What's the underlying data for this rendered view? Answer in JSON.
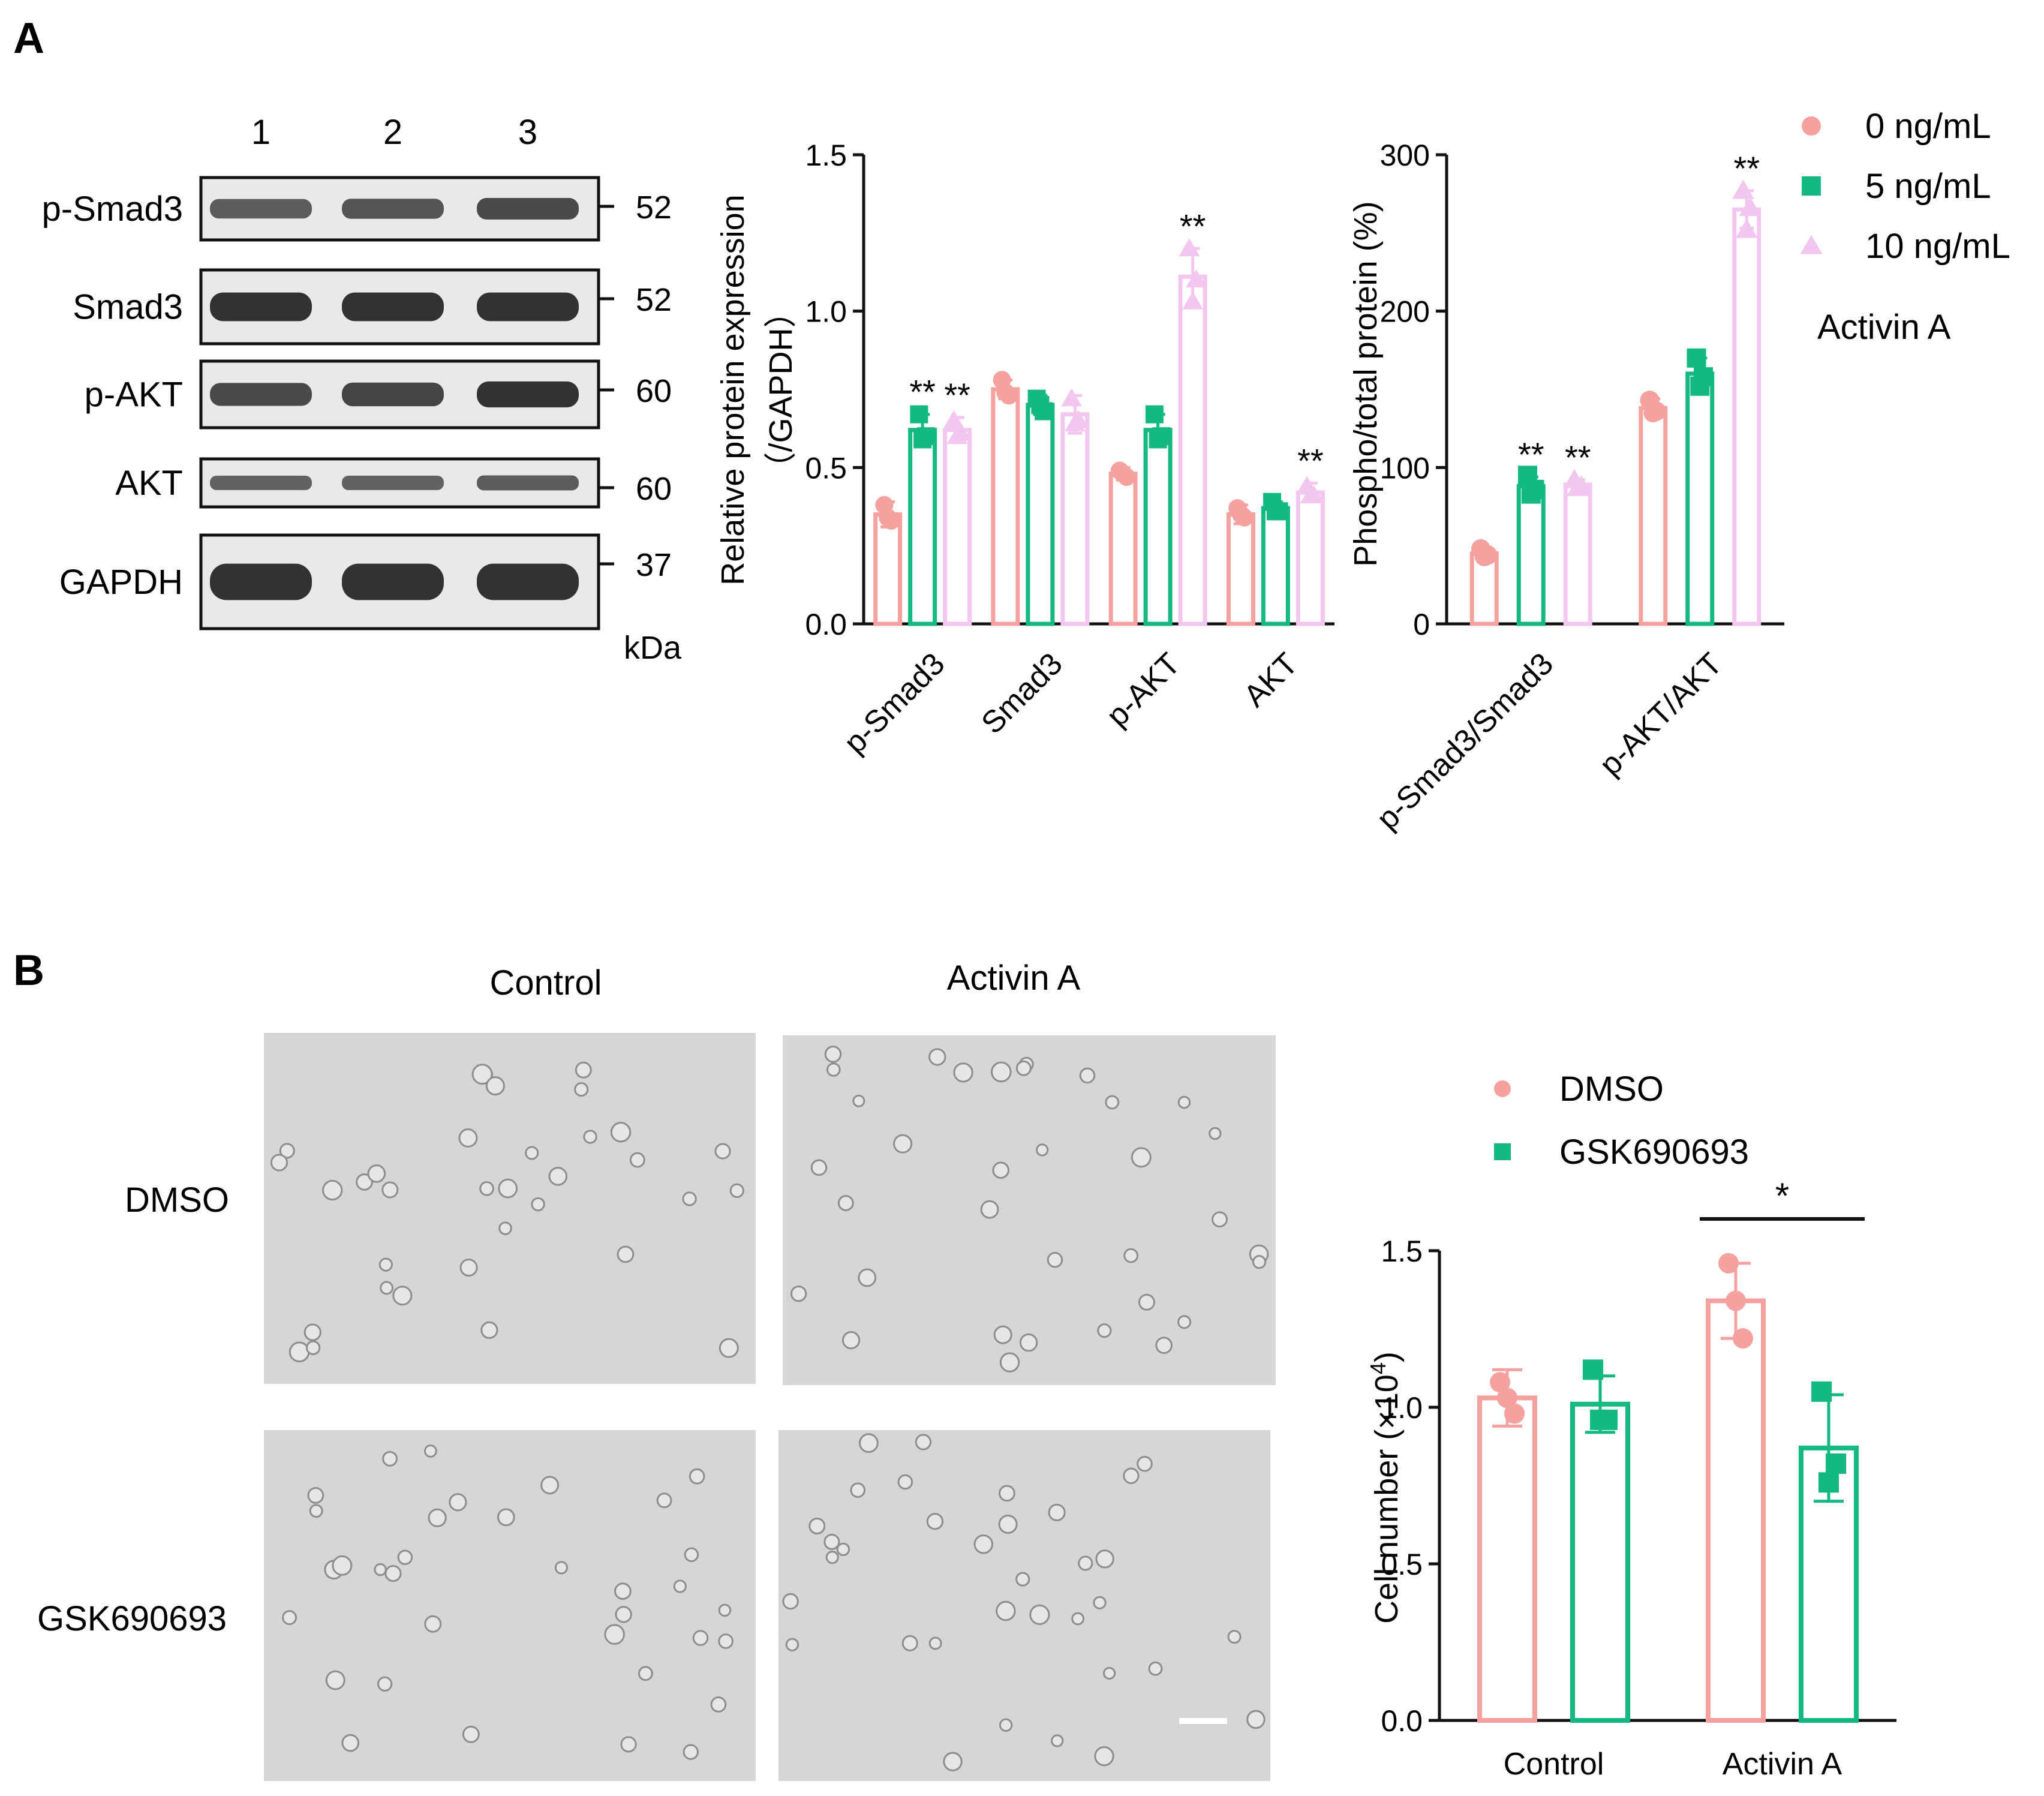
{
  "panels": {
    "a_label": "A",
    "b_label": "B"
  },
  "colors": {
    "pink": "#f4a1a0",
    "green": "#13b981",
    "light_pink": "#f3c6f0",
    "band": "#222222"
  },
  "western_blot": {
    "lanes": [
      "1",
      "2",
      "3"
    ],
    "rows": [
      {
        "label": "p-Smad3",
        "kda": "52",
        "intensities": [
          0.6,
          0.65,
          0.75
        ]
      },
      {
        "label": "Smad3",
        "kda": "52",
        "intensities": [
          0.95,
          0.95,
          0.95
        ]
      },
      {
        "label": "p-AKT",
        "kda": "60",
        "intensities": [
          0.75,
          0.8,
          0.95
        ]
      },
      {
        "label": "AKT",
        "kda": "60",
        "intensities": [
          0.55,
          0.55,
          0.6
        ]
      },
      {
        "label": "GAPDH",
        "kda": "37",
        "intensities": [
          0.95,
          0.95,
          0.95
        ]
      }
    ],
    "unit": "kDa"
  },
  "legend_a": {
    "entries": [
      {
        "label": "0 ng/mL",
        "marker": "circle"
      },
      {
        "label": "5 ng/mL",
        "marker": "square"
      },
      {
        "label": "10 ng/mL",
        "marker": "triangle"
      }
    ],
    "title": "Activin A"
  },
  "legend_b": {
    "entries": [
      {
        "label": "DMSO",
        "marker": "circle"
      },
      {
        "label": "GSK690693",
        "marker": "square"
      }
    ]
  },
  "micrographs": {
    "col_labels": [
      "Control",
      "Activin A"
    ],
    "row_labels": [
      "DMSO",
      "GSK690693"
    ]
  },
  "chart_data": [
    {
      "id": "relative-expression",
      "type": "bar",
      "ylabel_line1": "Relative protein expression",
      "ylabel_line2": "（/GAPDH）",
      "categories": [
        "p-Smad3",
        "Smad3",
        "p-AKT",
        "AKT"
      ],
      "ylim": [
        0,
        1.5
      ],
      "yticks": [
        "0.0",
        "0.5",
        "1.0",
        "1.5"
      ],
      "series": [
        {
          "name": "0 ng/mL",
          "values": [
            0.35,
            0.75,
            0.48,
            0.35
          ],
          "errors": [
            0.04,
            0.03,
            0.02,
            0.03
          ],
          "points": [
            [
              0.38,
              0.33,
              0.34
            ],
            [
              0.78,
              0.73,
              0.74
            ],
            [
              0.49,
              0.47,
              0.48
            ],
            [
              0.37,
              0.34,
              0.35
            ]
          ],
          "marks": [
            "",
            "",
            "",
            ""
          ]
        },
        {
          "name": "5 ng/mL",
          "values": [
            0.62,
            0.7,
            0.62,
            0.37
          ],
          "errors": [
            0.05,
            0.03,
            0.05,
            0.02
          ],
          "points": [
            [
              0.67,
              0.6,
              0.59
            ],
            [
              0.72,
              0.68,
              0.7
            ],
            [
              0.67,
              0.6,
              0.59
            ],
            [
              0.39,
              0.36,
              0.36
            ]
          ],
          "marks": [
            "**",
            "",
            "",
            ""
          ]
        },
        {
          "name": "10 ng/mL",
          "values": [
            0.62,
            0.67,
            1.11,
            0.42
          ],
          "errors": [
            0.04,
            0.06,
            0.09,
            0.03
          ],
          "points": [
            [
              0.65,
              0.61,
              0.6
            ],
            [
              0.72,
              0.65,
              0.64
            ],
            [
              1.2,
              1.1,
              1.03
            ],
            [
              0.44,
              0.41,
              0.41
            ]
          ],
          "marks": [
            "**",
            "",
            "**",
            "**"
          ]
        }
      ]
    },
    {
      "id": "phospho-total",
      "type": "bar",
      "ylabel": "Phospho/total protein (%)",
      "categories": [
        "p-Smad3/Smad3",
        "p-AKT/AKT"
      ],
      "ylim": [
        0,
        300
      ],
      "yticks": [
        "0",
        "100",
        "200",
        "300"
      ],
      "series": [
        {
          "name": "0 ng/mL",
          "values": [
            45,
            138
          ],
          "errors": [
            4,
            6
          ],
          "points": [
            [
              48,
              44,
              43
            ],
            [
              143,
              136,
              135
            ]
          ],
          "marks": [
            "",
            ""
          ]
        },
        {
          "name": "5 ng/mL",
          "values": [
            88,
            160
          ],
          "errors": [
            6,
            10
          ],
          "points": [
            [
              95,
              86,
              83
            ],
            [
              170,
              158,
              152
            ]
          ],
          "marks": [
            "**",
            ""
          ]
        },
        {
          "name": "10 ng/mL",
          "values": [
            89,
            265
          ],
          "errors": [
            3,
            12
          ],
          "points": [
            [
              92,
              88,
              87
            ],
            [
              277,
              266,
              252
            ]
          ],
          "marks": [
            "**",
            "**"
          ]
        }
      ]
    },
    {
      "id": "cell-number",
      "type": "bar",
      "ylabel": "Cell number (×10",
      "ylabel_sup": "4",
      "ylabel_close": ")",
      "categories": [
        "Control",
        "Activin A"
      ],
      "ylim": [
        0,
        1.5
      ],
      "yticks": [
        "0.0",
        "0.5",
        "1.0",
        "1.5"
      ],
      "series": [
        {
          "name": "DMSO",
          "values": [
            1.03,
            1.34
          ],
          "errors": [
            0.09,
            0.12
          ],
          "points": [
            [
              1.08,
              0.98,
              1.03
            ],
            [
              1.46,
              1.22,
              1.34
            ]
          ]
        },
        {
          "name": "GSK690693",
          "values": [
            1.01,
            0.87
          ],
          "errors": [
            0.09,
            0.17
          ],
          "points": [
            [
              1.12,
              0.96,
              0.96
            ],
            [
              1.05,
              0.82,
              0.76
            ]
          ]
        }
      ],
      "significance": {
        "label": "*",
        "between": "Activin A"
      }
    }
  ]
}
